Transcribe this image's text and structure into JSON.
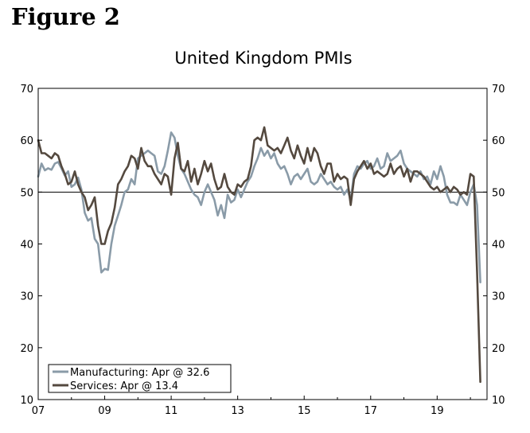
{
  "figure_label": "Figure 2",
  "chart_data": {
    "type": "line",
    "title": "United Kingdom PMIs",
    "xlabel": "",
    "ylabel": "",
    "xlim": [
      2007.0,
      2020.5
    ],
    "ylim": [
      10,
      70
    ],
    "reference_line": 50,
    "x_ticks": [
      {
        "value": 2007,
        "label": "07"
      },
      {
        "value": 2009,
        "label": "09"
      },
      {
        "value": 2011,
        "label": "11"
      },
      {
        "value": 2013,
        "label": "13"
      },
      {
        "value": 2015,
        "label": "15"
      },
      {
        "value": 2017,
        "label": "17"
      },
      {
        "value": 2019,
        "label": "19"
      }
    ],
    "y_ticks": [
      10,
      20,
      30,
      40,
      50,
      60,
      70
    ],
    "y_tick_labels": [
      "10",
      "20",
      "30",
      "40",
      "50",
      "60",
      "70"
    ],
    "legend_position": "bottom-left",
    "series": [
      {
        "name": "Manufacturing: Apr @ 32.6",
        "color": "#8a9ba8",
        "points": [
          [
            2007.0,
            53.0
          ],
          [
            2007.1,
            55.5
          ],
          [
            2007.2,
            54.2
          ],
          [
            2007.3,
            54.6
          ],
          [
            2007.4,
            54.3
          ],
          [
            2007.5,
            55.5
          ],
          [
            2007.6,
            55.8
          ],
          [
            2007.7,
            54.6
          ],
          [
            2007.8,
            53.2
          ],
          [
            2007.9,
            54.0
          ],
          [
            2008.0,
            51.0
          ],
          [
            2008.1,
            51.5
          ],
          [
            2008.2,
            52.8
          ],
          [
            2008.3,
            50.5
          ],
          [
            2008.4,
            46.0
          ],
          [
            2008.5,
            44.5
          ],
          [
            2008.6,
            45.0
          ],
          [
            2008.7,
            41.0
          ],
          [
            2008.8,
            40.0
          ],
          [
            2008.9,
            34.5
          ],
          [
            2009.0,
            35.2
          ],
          [
            2009.1,
            35.0
          ],
          [
            2009.2,
            40.0
          ],
          [
            2009.3,
            43.5
          ],
          [
            2009.4,
            45.5
          ],
          [
            2009.5,
            47.5
          ],
          [
            2009.6,
            50.0
          ],
          [
            2009.7,
            50.5
          ],
          [
            2009.8,
            52.5
          ],
          [
            2009.9,
            51.5
          ],
          [
            2010.0,
            56.5
          ],
          [
            2010.1,
            57.0
          ],
          [
            2010.2,
            57.5
          ],
          [
            2010.3,
            58.0
          ],
          [
            2010.4,
            57.5
          ],
          [
            2010.5,
            57.0
          ],
          [
            2010.6,
            54.0
          ],
          [
            2010.7,
            53.5
          ],
          [
            2010.8,
            55.0
          ],
          [
            2010.9,
            58.0
          ],
          [
            2011.0,
            61.5
          ],
          [
            2011.1,
            60.5
          ],
          [
            2011.2,
            57.0
          ],
          [
            2011.3,
            54.5
          ],
          [
            2011.4,
            53.5
          ],
          [
            2011.5,
            52.0
          ],
          [
            2011.6,
            50.5
          ],
          [
            2011.7,
            49.5
          ],
          [
            2011.8,
            49.0
          ],
          [
            2011.9,
            47.5
          ],
          [
            2012.0,
            50.0
          ],
          [
            2012.1,
            51.5
          ],
          [
            2012.2,
            50.0
          ],
          [
            2012.3,
            48.5
          ],
          [
            2012.4,
            45.5
          ],
          [
            2012.5,
            47.5
          ],
          [
            2012.6,
            45.0
          ],
          [
            2012.7,
            49.5
          ],
          [
            2012.8,
            48.0
          ],
          [
            2012.9,
            48.5
          ],
          [
            2013.0,
            50.5
          ],
          [
            2013.1,
            49.0
          ],
          [
            2013.2,
            50.5
          ],
          [
            2013.3,
            52.0
          ],
          [
            2013.4,
            53.0
          ],
          [
            2013.5,
            55.0
          ],
          [
            2013.6,
            56.5
          ],
          [
            2013.7,
            58.5
          ],
          [
            2013.8,
            57.0
          ],
          [
            2013.9,
            58.0
          ],
          [
            2014.0,
            56.5
          ],
          [
            2014.1,
            57.5
          ],
          [
            2014.2,
            55.5
          ],
          [
            2014.3,
            54.5
          ],
          [
            2014.4,
            55.0
          ],
          [
            2014.5,
            53.5
          ],
          [
            2014.6,
            51.5
          ],
          [
            2014.7,
            53.0
          ],
          [
            2014.8,
            53.5
          ],
          [
            2014.9,
            52.5
          ],
          [
            2015.0,
            53.5
          ],
          [
            2015.1,
            54.5
          ],
          [
            2015.2,
            52.0
          ],
          [
            2015.3,
            51.5
          ],
          [
            2015.4,
            52.0
          ],
          [
            2015.5,
            53.5
          ],
          [
            2015.6,
            52.5
          ],
          [
            2015.7,
            51.5
          ],
          [
            2015.8,
            52.0
          ],
          [
            2015.9,
            51.0
          ],
          [
            2016.0,
            50.5
          ],
          [
            2016.1,
            51.0
          ],
          [
            2016.2,
            49.5
          ],
          [
            2016.3,
            50.5
          ],
          [
            2016.4,
            48.5
          ],
          [
            2016.5,
            53.5
          ],
          [
            2016.6,
            55.0
          ],
          [
            2016.7,
            54.5
          ],
          [
            2016.8,
            55.5
          ],
          [
            2016.9,
            56.0
          ],
          [
            2017.0,
            54.5
          ],
          [
            2017.1,
            55.0
          ],
          [
            2017.2,
            56.5
          ],
          [
            2017.3,
            54.5
          ],
          [
            2017.4,
            55.0
          ],
          [
            2017.5,
            57.5
          ],
          [
            2017.6,
            56.0
          ],
          [
            2017.7,
            56.5
          ],
          [
            2017.8,
            57.0
          ],
          [
            2017.9,
            58.0
          ],
          [
            2018.0,
            55.5
          ],
          [
            2018.1,
            54.5
          ],
          [
            2018.2,
            54.0
          ],
          [
            2018.3,
            53.5
          ],
          [
            2018.4,
            53.0
          ],
          [
            2018.5,
            54.0
          ],
          [
            2018.6,
            52.5
          ],
          [
            2018.7,
            53.0
          ],
          [
            2018.8,
            51.5
          ],
          [
            2018.9,
            54.0
          ],
          [
            2019.0,
            52.5
          ],
          [
            2019.1,
            55.0
          ],
          [
            2019.2,
            53.0
          ],
          [
            2019.3,
            49.5
          ],
          [
            2019.4,
            48.0
          ],
          [
            2019.5,
            48.0
          ],
          [
            2019.6,
            47.5
          ],
          [
            2019.7,
            49.5
          ],
          [
            2019.8,
            48.5
          ],
          [
            2019.9,
            47.5
          ],
          [
            2020.0,
            50.0
          ],
          [
            2020.1,
            51.5
          ],
          [
            2020.2,
            47.5
          ],
          [
            2020.3,
            32.6
          ]
        ]
      },
      {
        "name": "Services: Apr @ 13.4",
        "color": "#54493f",
        "points": [
          [
            2007.0,
            60.0
          ],
          [
            2007.1,
            57.5
          ],
          [
            2007.2,
            57.5
          ],
          [
            2007.3,
            57.0
          ],
          [
            2007.4,
            56.5
          ],
          [
            2007.5,
            57.5
          ],
          [
            2007.6,
            57.0
          ],
          [
            2007.7,
            55.0
          ],
          [
            2007.8,
            53.5
          ],
          [
            2007.9,
            51.5
          ],
          [
            2008.0,
            52.0
          ],
          [
            2008.1,
            54.0
          ],
          [
            2008.2,
            51.5
          ],
          [
            2008.3,
            50.0
          ],
          [
            2008.4,
            49.0
          ],
          [
            2008.5,
            46.5
          ],
          [
            2008.6,
            47.5
          ],
          [
            2008.7,
            49.0
          ],
          [
            2008.8,
            43.5
          ],
          [
            2008.9,
            40.0
          ],
          [
            2009.0,
            40.0
          ],
          [
            2009.1,
            42.5
          ],
          [
            2009.2,
            44.0
          ],
          [
            2009.3,
            47.0
          ],
          [
            2009.4,
            51.5
          ],
          [
            2009.5,
            52.5
          ],
          [
            2009.6,
            54.0
          ],
          [
            2009.7,
            55.0
          ],
          [
            2009.8,
            57.0
          ],
          [
            2009.9,
            56.5
          ],
          [
            2010.0,
            54.5
          ],
          [
            2010.1,
            58.5
          ],
          [
            2010.2,
            56.0
          ],
          [
            2010.3,
            55.0
          ],
          [
            2010.4,
            55.0
          ],
          [
            2010.5,
            53.5
          ],
          [
            2010.6,
            52.5
          ],
          [
            2010.7,
            51.5
          ],
          [
            2010.8,
            53.5
          ],
          [
            2010.9,
            53.0
          ],
          [
            2011.0,
            49.5
          ],
          [
            2011.1,
            56.5
          ],
          [
            2011.2,
            59.5
          ],
          [
            2011.3,
            54.5
          ],
          [
            2011.4,
            54.0
          ],
          [
            2011.5,
            56.0
          ],
          [
            2011.6,
            52.0
          ],
          [
            2011.7,
            54.5
          ],
          [
            2011.8,
            51.5
          ],
          [
            2011.9,
            53.5
          ],
          [
            2012.0,
            56.0
          ],
          [
            2012.1,
            54.0
          ],
          [
            2012.2,
            55.5
          ],
          [
            2012.3,
            52.5
          ],
          [
            2012.4,
            50.5
          ],
          [
            2012.5,
            51.0
          ],
          [
            2012.6,
            53.5
          ],
          [
            2012.7,
            51.0
          ],
          [
            2012.8,
            50.0
          ],
          [
            2012.9,
            49.5
          ],
          [
            2013.0,
            51.5
          ],
          [
            2013.1,
            51.0
          ],
          [
            2013.2,
            52.0
          ],
          [
            2013.3,
            52.5
          ],
          [
            2013.4,
            55.0
          ],
          [
            2013.5,
            60.0
          ],
          [
            2013.6,
            60.5
          ],
          [
            2013.7,
            60.0
          ],
          [
            2013.8,
            62.5
          ],
          [
            2013.9,
            59.0
          ],
          [
            2014.0,
            58.5
          ],
          [
            2014.1,
            58.0
          ],
          [
            2014.2,
            58.5
          ],
          [
            2014.3,
            57.5
          ],
          [
            2014.4,
            59.0
          ],
          [
            2014.5,
            60.5
          ],
          [
            2014.6,
            58.0
          ],
          [
            2014.7,
            56.5
          ],
          [
            2014.8,
            59.0
          ],
          [
            2014.9,
            57.0
          ],
          [
            2015.0,
            55.5
          ],
          [
            2015.1,
            58.5
          ],
          [
            2015.2,
            56.0
          ],
          [
            2015.3,
            58.5
          ],
          [
            2015.4,
            57.5
          ],
          [
            2015.5,
            55.0
          ],
          [
            2015.6,
            53.5
          ],
          [
            2015.7,
            55.5
          ],
          [
            2015.8,
            55.5
          ],
          [
            2015.9,
            52.0
          ],
          [
            2016.0,
            53.5
          ],
          [
            2016.1,
            52.5
          ],
          [
            2016.2,
            53.0
          ],
          [
            2016.3,
            52.5
          ],
          [
            2016.4,
            47.5
          ],
          [
            2016.5,
            52.5
          ],
          [
            2016.6,
            54.0
          ],
          [
            2016.7,
            55.0
          ],
          [
            2016.8,
            56.0
          ],
          [
            2016.9,
            54.5
          ],
          [
            2017.0,
            55.5
          ],
          [
            2017.1,
            53.5
          ],
          [
            2017.2,
            54.0
          ],
          [
            2017.3,
            53.5
          ],
          [
            2017.4,
            53.0
          ],
          [
            2017.5,
            53.5
          ],
          [
            2017.6,
            55.5
          ],
          [
            2017.7,
            53.5
          ],
          [
            2017.8,
            54.5
          ],
          [
            2017.9,
            55.0
          ],
          [
            2018.0,
            53.0
          ],
          [
            2018.1,
            54.5
          ],
          [
            2018.2,
            52.0
          ],
          [
            2018.3,
            54.0
          ],
          [
            2018.4,
            54.0
          ],
          [
            2018.5,
            53.5
          ],
          [
            2018.6,
            53.0
          ],
          [
            2018.7,
            52.0
          ],
          [
            2018.8,
            51.0
          ],
          [
            2018.9,
            50.5
          ],
          [
            2019.0,
            51.0
          ],
          [
            2019.1,
            50.0
          ],
          [
            2019.2,
            50.5
          ],
          [
            2019.3,
            51.0
          ],
          [
            2019.4,
            50.0
          ],
          [
            2019.5,
            51.0
          ],
          [
            2019.6,
            50.5
          ],
          [
            2019.7,
            49.5
          ],
          [
            2019.8,
            50.0
          ],
          [
            2019.9,
            49.5
          ],
          [
            2020.0,
            53.5
          ],
          [
            2020.1,
            53.0
          ],
          [
            2020.2,
            34.5
          ],
          [
            2020.3,
            13.4
          ]
        ]
      }
    ]
  }
}
